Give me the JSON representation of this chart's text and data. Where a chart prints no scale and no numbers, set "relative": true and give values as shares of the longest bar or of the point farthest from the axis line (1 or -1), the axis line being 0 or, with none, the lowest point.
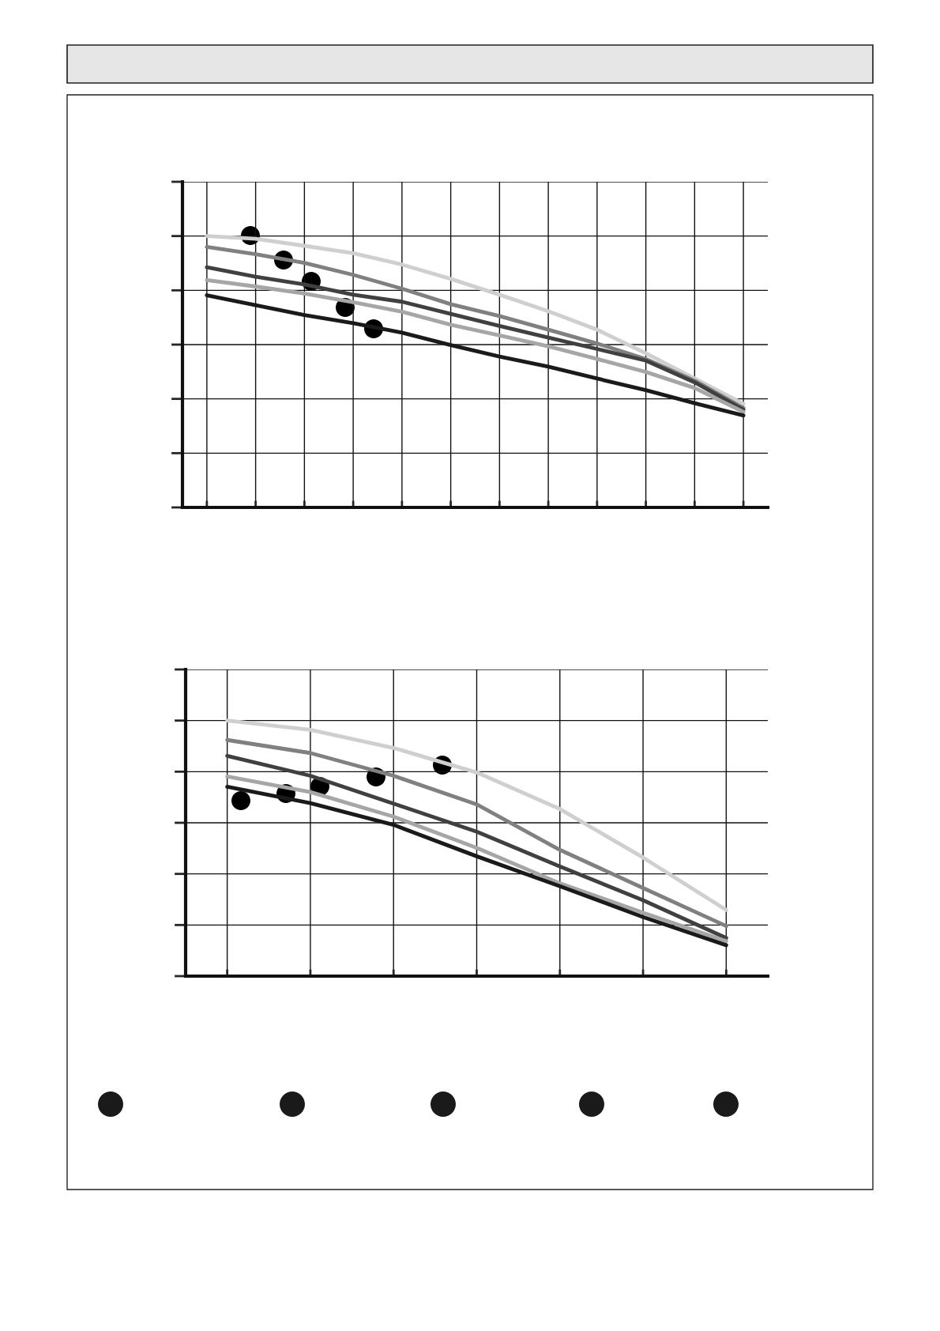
{
  "chart_data": [
    {
      "type": "line",
      "relative": true,
      "grid": true,
      "categories": [
        null,
        null,
        null,
        null,
        null,
        null,
        null,
        null,
        null,
        null,
        null,
        null
      ],
      "series": [
        {
          "color": "#cfcfcf",
          "values": [
            1.0,
            0.99,
            0.964,
            0.937,
            0.895,
            0.842,
            0.784,
            0.723,
            0.655,
            0.568,
            0.475,
            0.382
          ]
        },
        {
          "color": "#808080",
          "values": [
            0.96,
            0.933,
            0.901,
            0.857,
            0.806,
            0.749,
            0.705,
            0.655,
            0.604,
            0.547,
            0.467,
            0.366
          ]
        },
        {
          "color": "#404040",
          "values": [
            0.885,
            0.85,
            0.822,
            0.784,
            0.758,
            0.713,
            0.669,
            0.626,
            0.584,
            0.541,
            0.461,
            0.36
          ]
        },
        {
          "color": "#a6a6a6",
          "values": [
            0.838,
            0.814,
            0.788,
            0.756,
            0.721,
            0.673,
            0.634,
            0.594,
            0.547,
            0.499,
            0.44,
            0.352
          ]
        },
        {
          "color": "#1a1a1a",
          "values": [
            0.782,
            0.745,
            0.709,
            0.679,
            0.644,
            0.598,
            0.556,
            0.519,
            0.475,
            0.432,
            0.384,
            0.339
          ]
        }
      ]
    },
    {
      "type": "line",
      "relative": true,
      "grid": true,
      "categories": [
        null,
        null,
        null,
        null,
        null,
        null,
        null
      ],
      "series": [
        {
          "color": "#cfcfcf",
          "values": [
            1.0,
            0.964,
            0.893,
            0.797,
            0.654,
            0.464,
            0.259
          ]
        },
        {
          "color": "#808080",
          "values": [
            0.924,
            0.873,
            0.784,
            0.672,
            0.494,
            0.345,
            0.196
          ]
        },
        {
          "color": "#404040",
          "values": [
            0.862,
            0.784,
            0.675,
            0.565,
            0.429,
            0.297,
            0.149
          ]
        },
        {
          "color": "#a6a6a6",
          "values": [
            0.781,
            0.72,
            0.624,
            0.502,
            0.363,
            0.248,
            0.137
          ]
        },
        {
          "color": "#1a1a1a",
          "values": [
            0.741,
            0.677,
            0.592,
            0.469,
            0.352,
            0.231,
            0.121
          ]
        }
      ]
    }
  ]
}
